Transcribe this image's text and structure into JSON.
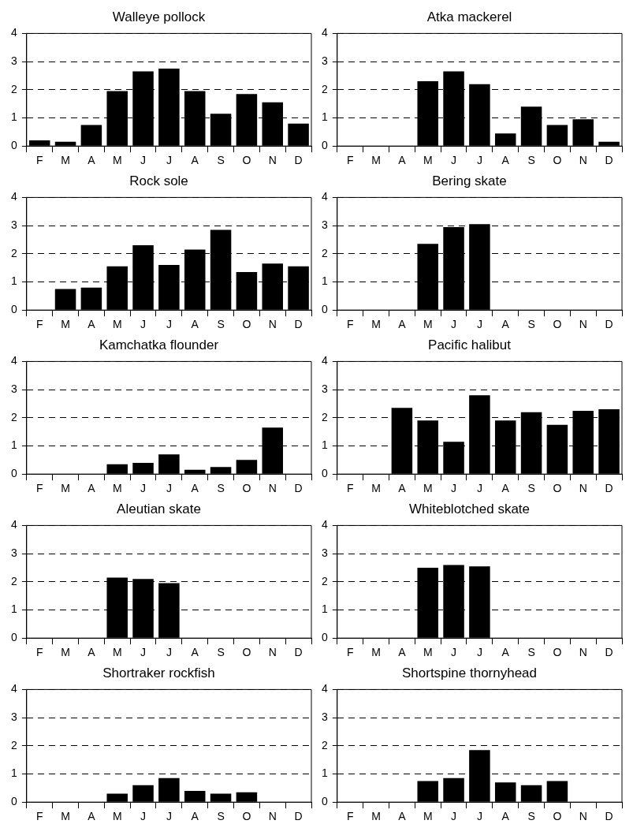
{
  "chart_data": [
    {
      "type": "bar",
      "title": "Walleye pollock",
      "categories": [
        "F",
        "M",
        "A",
        "M",
        "J",
        "J",
        "A",
        "S",
        "O",
        "N",
        "D"
      ],
      "values": [
        0.2,
        0.15,
        0.75,
        1.95,
        2.65,
        2.75,
        1.95,
        1.15,
        1.85,
        1.55,
        0.8
      ],
      "color": "#000000",
      "ylim": [
        0,
        4
      ],
      "yticks": [
        0,
        1,
        2,
        3,
        4
      ],
      "grid": "y"
    },
    {
      "type": "bar",
      "title": "Atka mackerel",
      "categories": [
        "F",
        "M",
        "A",
        "M",
        "J",
        "J",
        "A",
        "S",
        "O",
        "N",
        "D"
      ],
      "values": [
        0,
        0,
        0,
        2.3,
        2.65,
        2.2,
        0.45,
        1.4,
        0.75,
        0.95,
        0.15
      ],
      "color": "#000000",
      "ylim": [
        0,
        4
      ],
      "yticks": [
        0,
        1,
        2,
        3,
        4
      ],
      "grid": "y"
    },
    {
      "type": "bar",
      "title": "Rock sole",
      "categories": [
        "F",
        "M",
        "A",
        "M",
        "J",
        "J",
        "A",
        "S",
        "O",
        "N",
        "D"
      ],
      "values": [
        0,
        0.75,
        0.8,
        1.55,
        2.3,
        1.6,
        2.15,
        2.85,
        1.35,
        1.65,
        1.55
      ],
      "color": "#000000",
      "ylim": [
        0,
        4
      ],
      "yticks": [
        0,
        1,
        2,
        3,
        4
      ],
      "grid": "y"
    },
    {
      "type": "bar",
      "title": "Bering skate",
      "categories": [
        "F",
        "M",
        "A",
        "M",
        "J",
        "J",
        "A",
        "S",
        "O",
        "N",
        "D"
      ],
      "values": [
        0,
        0,
        0,
        2.35,
        2.95,
        3.05,
        0,
        0,
        0,
        0,
        0
      ],
      "color": "#000000",
      "ylim": [
        0,
        4
      ],
      "yticks": [
        0,
        1,
        2,
        3,
        4
      ],
      "grid": "y"
    },
    {
      "type": "bar",
      "title": "Kamchatka flounder",
      "categories": [
        "F",
        "M",
        "A",
        "M",
        "J",
        "J",
        "A",
        "S",
        "O",
        "N",
        "D"
      ],
      "values": [
        0,
        0,
        0,
        0.35,
        0.4,
        0.7,
        0.15,
        0.25,
        0.5,
        1.65,
        0
      ],
      "color": "#000000",
      "ylim": [
        0,
        4
      ],
      "yticks": [
        0,
        1,
        2,
        3,
        4
      ],
      "grid": "y"
    },
    {
      "type": "bar",
      "title": "Pacific halibut",
      "categories": [
        "F",
        "M",
        "A",
        "M",
        "J",
        "J",
        "A",
        "S",
        "O",
        "N",
        "D"
      ],
      "values": [
        0,
        0,
        2.35,
        1.9,
        1.15,
        2.8,
        1.9,
        2.2,
        1.75,
        2.25,
        2.3
      ],
      "color": "#000000",
      "ylim": [
        0,
        4
      ],
      "yticks": [
        0,
        1,
        2,
        3,
        4
      ],
      "grid": "y"
    },
    {
      "type": "bar",
      "title": "Aleutian skate",
      "categories": [
        "F",
        "M",
        "A",
        "M",
        "J",
        "J",
        "A",
        "S",
        "O",
        "N",
        "D"
      ],
      "values": [
        0,
        0,
        0,
        2.15,
        2.1,
        1.95,
        0,
        0,
        0,
        0,
        0
      ],
      "color": "#000000",
      "ylim": [
        0,
        4
      ],
      "yticks": [
        0,
        1,
        2,
        3,
        4
      ],
      "grid": "y"
    },
    {
      "type": "bar",
      "title": "Whiteblotched skate",
      "categories": [
        "F",
        "M",
        "A",
        "M",
        "J",
        "J",
        "A",
        "S",
        "O",
        "N",
        "D"
      ],
      "values": [
        0,
        0,
        0,
        2.5,
        2.6,
        2.55,
        0,
        0,
        0,
        0,
        0
      ],
      "color": "#000000",
      "ylim": [
        0,
        4
      ],
      "yticks": [
        0,
        1,
        2,
        3,
        4
      ],
      "grid": "y"
    },
    {
      "type": "bar",
      "title": "Shortraker rockfish",
      "categories": [
        "F",
        "M",
        "A",
        "M",
        "J",
        "J",
        "A",
        "S",
        "O",
        "N",
        "D"
      ],
      "values": [
        0,
        0,
        0,
        0.3,
        0.6,
        0.85,
        0.4,
        0.3,
        0.35,
        0,
        0
      ],
      "color": "#000000",
      "ylim": [
        0,
        4
      ],
      "yticks": [
        0,
        1,
        2,
        3,
        4
      ],
      "grid": "y"
    },
    {
      "type": "bar",
      "title": "Shortspine thornyhead",
      "categories": [
        "F",
        "M",
        "A",
        "M",
        "J",
        "J",
        "A",
        "S",
        "O",
        "N",
        "D"
      ],
      "values": [
        0,
        0,
        0,
        0.75,
        0.85,
        1.85,
        0.7,
        0.6,
        0.75,
        0,
        0
      ],
      "color": "#000000",
      "ylim": [
        0,
        4
      ],
      "yticks": [
        0,
        1,
        2,
        3,
        4
      ],
      "grid": "y"
    }
  ]
}
